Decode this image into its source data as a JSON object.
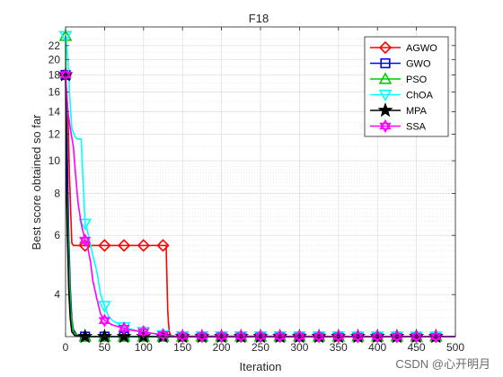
{
  "chart_data": {
    "type": "line",
    "title": "F18",
    "xlabel": "Iteration",
    "ylabel": "Best score obtained so far",
    "xlim": [
      0,
      500
    ],
    "ylim": [
      3.0,
      25
    ],
    "yscale": "log",
    "grid": true,
    "legend_position": "top-right",
    "x_ticks": [
      0,
      50,
      100,
      150,
      200,
      250,
      300,
      350,
      400,
      450,
      500
    ],
    "y_ticks": [
      4,
      6,
      8,
      10,
      12,
      14,
      16,
      18,
      20,
      22
    ],
    "marker_x": [
      0,
      25,
      50,
      75,
      100,
      125,
      150,
      175,
      200,
      225,
      250,
      275,
      300,
      325,
      350,
      375,
      400,
      425,
      450,
      475
    ],
    "series": [
      {
        "name": "AGWO",
        "color": "#ff0000",
        "marker": "diamond",
        "x": [
          0,
          3,
          5,
          8,
          10,
          20,
          50,
          100,
          129,
          130,
          131,
          132,
          133,
          135,
          140,
          500
        ],
        "y": [
          18,
          14,
          9.0,
          5.7,
          5.6,
          5.6,
          5.6,
          5.6,
          5.6,
          4.5,
          3.6,
          3.3,
          3.1,
          3.02,
          3.0,
          3.0
        ]
      },
      {
        "name": "GWO",
        "color": "#0000ff",
        "marker": "square",
        "x": [
          0,
          2,
          4,
          6,
          8,
          10,
          15,
          25,
          500
        ],
        "y": [
          18,
          11,
          6.0,
          4.2,
          3.4,
          3.15,
          3.02,
          3.0,
          3.0
        ]
      },
      {
        "name": "PSO",
        "color": "#00cc00",
        "marker": "triangle-up",
        "x": [
          0,
          1,
          3,
          5,
          7,
          10,
          15,
          25,
          500
        ],
        "y": [
          23.5,
          9.0,
          6.5,
          4.5,
          3.5,
          3.1,
          3.02,
          3.0,
          3.0
        ]
      },
      {
        "name": "ChOA",
        "color": "#00ffff",
        "marker": "triangle-down",
        "x": [
          0,
          3,
          5,
          8,
          12,
          15,
          20,
          25,
          28,
          32,
          37,
          40,
          45,
          50,
          55,
          60,
          65,
          75,
          85,
          100,
          115,
          125,
          135,
          500
        ],
        "y": [
          23.5,
          20,
          16,
          12.5,
          11.8,
          11.6,
          11.6,
          6.5,
          6.2,
          5.6,
          5.0,
          4.7,
          4.0,
          3.7,
          3.45,
          3.35,
          3.3,
          3.2,
          3.15,
          3.1,
          3.06,
          3.03,
          3.01,
          3.0
        ]
      },
      {
        "name": "MPA",
        "color": "#000000",
        "marker": "star",
        "x": [
          0,
          1,
          2,
          3,
          4,
          6,
          8,
          12,
          25,
          500
        ],
        "y": [
          18,
          9.0,
          6.5,
          5.3,
          4.2,
          3.4,
          3.1,
          3.02,
          3.0,
          3.0
        ]
      },
      {
        "name": "SSA",
        "color": "#ff00ff",
        "marker": "hexagram",
        "x": [
          0,
          3,
          6,
          10,
          13,
          16,
          20,
          25,
          28,
          32,
          35,
          40,
          45,
          50,
          60,
          70,
          80,
          90,
          100,
          110,
          120,
          130,
          140,
          500
        ],
        "y": [
          18,
          14,
          12.5,
          11,
          9.0,
          7.5,
          6.5,
          5.8,
          5.6,
          5.0,
          4.4,
          3.9,
          3.5,
          3.35,
          3.25,
          3.2,
          3.15,
          3.12,
          3.1,
          3.07,
          3.05,
          3.03,
          3.01,
          3.0
        ]
      }
    ]
  }
}
